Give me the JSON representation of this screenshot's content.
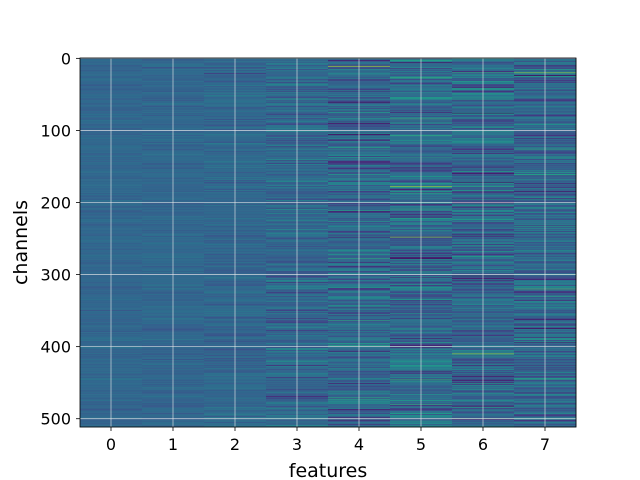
{
  "chart_data": {
    "type": "heatmap",
    "title": "",
    "xlabel": "features",
    "ylabel": "channels",
    "x_categories": [
      "0",
      "1",
      "2",
      "3",
      "4",
      "5",
      "6",
      "7"
    ],
    "y_ticks": [
      0,
      100,
      200,
      300,
      400,
      500
    ],
    "y_range": [
      0,
      511
    ],
    "y_inverted": true,
    "grid": true,
    "colormap": "viridis",
    "n_rows": 512,
    "column_spread": [
      0.25,
      0.3,
      0.45,
      0.8,
      1.1,
      1.2,
      1.25,
      1.1
    ],
    "highlights": [
      {
        "feature": 4,
        "channel": 11,
        "value": 0.85
      },
      {
        "feature": 5,
        "channel": 178,
        "value": 0.82
      },
      {
        "feature": 5,
        "channel": 248,
        "value": 0.8
      },
      {
        "feature": 6,
        "channel": 410,
        "value": 0.82
      },
      {
        "feature": 7,
        "channel": 20,
        "value": 0.8
      },
      {
        "feature": 7,
        "channel": 320,
        "value": 0.7
      }
    ]
  }
}
